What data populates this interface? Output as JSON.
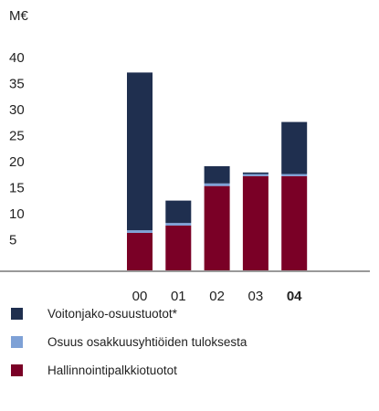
{
  "chart_data": {
    "type": "bar",
    "stacked": true,
    "y_label": "M€",
    "categories": [
      "00",
      "01",
      "02",
      "03",
      "04"
    ],
    "series": [
      {
        "name": "Hallinnointipalkkiotuotot",
        "color": "#7a0026",
        "values": [
          7.2,
          8.6,
          16.2,
          18.1,
          18.1
        ]
      },
      {
        "name": "Osuus osakkuusyhtiöiden tuloksesta",
        "color": "#7ea1d6",
        "values": [
          0.5,
          0.5,
          0.5,
          0.4,
          0.4
        ]
      },
      {
        "name": "Voitonjako-osuustuotot*",
        "color": "#1f2f4f",
        "values": [
          30.3,
          4.3,
          3.3,
          0.3,
          10
        ]
      }
    ],
    "ylim": [
      0,
      40
    ],
    "yticks": [
      5,
      10,
      15,
      20,
      25,
      30,
      35,
      40
    ]
  }
}
